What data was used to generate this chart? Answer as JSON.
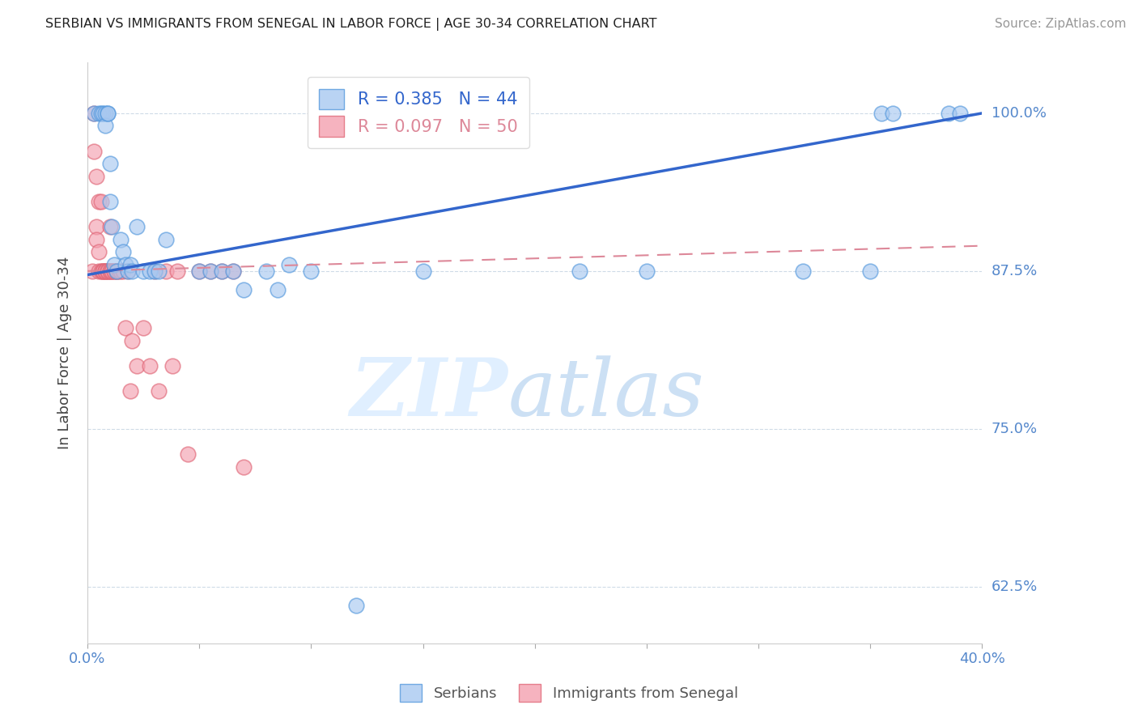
{
  "title": "SERBIAN VS IMMIGRANTS FROM SENEGAL IN LABOR FORCE | AGE 30-34 CORRELATION CHART",
  "source": "Source: ZipAtlas.com",
  "ylabel": "In Labor Force | Age 30-34",
  "xlim": [
    0.0,
    0.4
  ],
  "ylim": [
    0.58,
    1.04
  ],
  "xticks": [
    0.0,
    0.05,
    0.1,
    0.15,
    0.2,
    0.25,
    0.3,
    0.35,
    0.4
  ],
  "xticklabels": [
    "0.0%",
    "",
    "",
    "",
    "",
    "",
    "",
    "",
    "40.0%"
  ],
  "yticks": [
    0.625,
    0.75,
    0.875,
    1.0
  ],
  "yticklabels": [
    "62.5%",
    "75.0%",
    "87.5%",
    "100.0%"
  ],
  "legend_blue_r": "R = 0.385",
  "legend_blue_n": "N = 44",
  "legend_pink_r": "R = 0.097",
  "legend_pink_n": "N = 50",
  "blue_color": "#a8c8f0",
  "pink_color": "#f4a0b0",
  "blue_edge_color": "#5599dd",
  "pink_edge_color": "#e06878",
  "blue_line_color": "#3366cc",
  "pink_line_color": "#dd8899",
  "axis_label_color": "#5588cc",
  "blue_x": [
    0.003,
    0.005,
    0.006,
    0.007,
    0.008,
    0.008,
    0.009,
    0.009,
    0.01,
    0.01,
    0.011,
    0.012,
    0.013,
    0.015,
    0.016,
    0.017,
    0.018,
    0.019,
    0.02,
    0.022,
    0.025,
    0.028,
    0.03,
    0.032,
    0.035,
    0.05,
    0.055,
    0.06,
    0.065,
    0.07,
    0.08,
    0.085,
    0.09,
    0.1,
    0.12,
    0.15,
    0.22,
    0.25,
    0.32,
    0.35,
    0.355,
    0.36,
    0.385,
    0.39
  ],
  "blue_y": [
    1.0,
    1.0,
    1.0,
    1.0,
    1.0,
    0.99,
    1.0,
    1.0,
    0.96,
    0.93,
    0.91,
    0.88,
    0.875,
    0.9,
    0.89,
    0.88,
    0.875,
    0.88,
    0.875,
    0.91,
    0.875,
    0.875,
    0.875,
    0.875,
    0.9,
    0.875,
    0.875,
    0.875,
    0.875,
    0.86,
    0.875,
    0.86,
    0.88,
    0.875,
    0.61,
    0.875,
    0.875,
    0.875,
    0.875,
    0.875,
    1.0,
    1.0,
    1.0,
    1.0
  ],
  "pink_x": [
    0.002,
    0.003,
    0.003,
    0.004,
    0.004,
    0.004,
    0.005,
    0.005,
    0.005,
    0.006,
    0.006,
    0.007,
    0.007,
    0.007,
    0.008,
    0.008,
    0.008,
    0.009,
    0.009,
    0.009,
    0.01,
    0.01,
    0.01,
    0.011,
    0.011,
    0.012,
    0.012,
    0.013,
    0.013,
    0.014,
    0.015,
    0.016,
    0.017,
    0.018,
    0.019,
    0.02,
    0.022,
    0.025,
    0.028,
    0.03,
    0.032,
    0.035,
    0.038,
    0.04,
    0.045,
    0.05,
    0.055,
    0.06,
    0.065,
    0.07
  ],
  "pink_y": [
    0.875,
    1.0,
    0.97,
    0.91,
    0.95,
    0.9,
    0.93,
    0.875,
    0.89,
    0.875,
    0.93,
    0.875,
    0.875,
    0.875,
    0.875,
    0.875,
    0.875,
    0.875,
    0.875,
    0.875,
    0.91,
    0.875,
    0.875,
    0.875,
    0.875,
    0.875,
    0.875,
    0.875,
    0.875,
    0.875,
    0.875,
    0.875,
    0.83,
    0.875,
    0.78,
    0.82,
    0.8,
    0.83,
    0.8,
    0.875,
    0.78,
    0.875,
    0.8,
    0.875,
    0.73,
    0.875,
    0.875,
    0.875,
    0.875,
    0.72
  ]
}
